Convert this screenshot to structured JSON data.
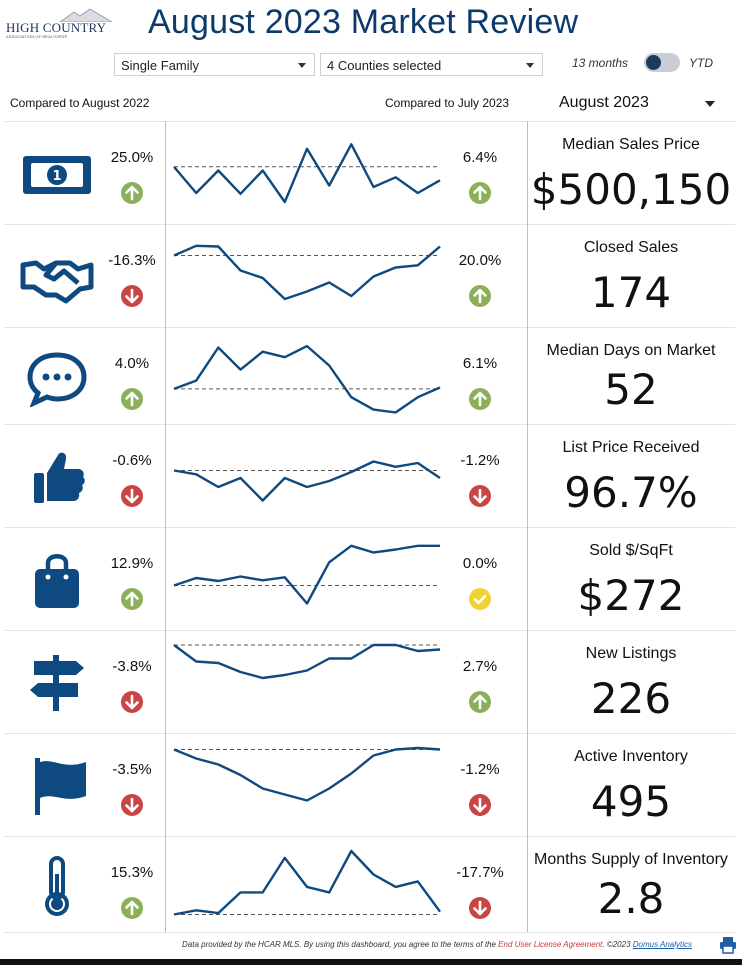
{
  "logo": {
    "name": "HIGH COUNTRY",
    "tagline": "ASSOCIATION OF REALTORS®"
  },
  "title": "August 2023 Market Review",
  "filters": {
    "property_type": "Single Family",
    "counties": "4 Counties selected",
    "toggle_left": "13 months",
    "toggle_right": "YTD"
  },
  "compare": {
    "year_label": "Compared to August 2022",
    "month_label": "Compared to July 2023",
    "selected_month": "August 2023"
  },
  "colors": {
    "accent": "#0e3a6b",
    "up": "#8cb05a",
    "down": "#c94545",
    "flat": "#f0d234"
  },
  "metrics": [
    {
      "title": "Median Sales Price",
      "value": "$500,150",
      "yoy": "25.0%",
      "yoy_dir": "up",
      "mom": "6.4%",
      "mom_dir": "up",
      "icon": "money-icon",
      "series": [
        0.41,
        0.76,
        0.46,
        0.77,
        0.46,
        0.88,
        0.17,
        0.66,
        0.11,
        0.68,
        0.55,
        0.76,
        0.59
      ]
    },
    {
      "title": "Closed Sales",
      "value": "174",
      "yoy": "-16.3%",
      "yoy_dir": "down",
      "mom": "20.0%",
      "mom_dir": "up",
      "icon": "handshake-icon",
      "series": [
        0.22,
        0.09,
        0.1,
        0.42,
        0.52,
        0.8,
        0.7,
        0.58,
        0.76,
        0.5,
        0.38,
        0.35,
        0.1
      ]
    },
    {
      "title": "Median Days on Market",
      "value": "52",
      "yoy": "4.0%",
      "yoy_dir": "up",
      "mom": "6.1%",
      "mom_dir": "up",
      "icon": "chat-icon",
      "series": [
        0.68,
        0.56,
        0.08,
        0.4,
        0.14,
        0.22,
        0.06,
        0.34,
        0.8,
        0.98,
        1.02,
        0.8,
        0.66
      ]
    },
    {
      "title": "List Price Received",
      "value": "96.7%",
      "yoy": "-0.6%",
      "yoy_dir": "down",
      "mom": "-1.2%",
      "mom_dir": "down",
      "icon": "thumbs-up-icon",
      "series": [
        0.42,
        0.47,
        0.64,
        0.52,
        0.82,
        0.52,
        0.64,
        0.56,
        0.44,
        0.3,
        0.37,
        0.32,
        0.52
      ]
    },
    {
      "title": "Sold $/SqFt",
      "value": "$272",
      "yoy": "12.9%",
      "yoy_dir": "up",
      "mom": "0.0%",
      "mom_dir": "flat",
      "icon": "shopping-bag-icon",
      "series": [
        0.58,
        0.48,
        0.52,
        0.46,
        0.51,
        0.47,
        0.82,
        0.27,
        0.05,
        0.14,
        0.1,
        0.05,
        0.05
      ]
    },
    {
      "title": "New Listings",
      "value": "226",
      "yoy": "-3.8%",
      "yoy_dir": "down",
      "mom": "2.7%",
      "mom_dir": "up",
      "icon": "signpost-icon",
      "series": [
        0.0,
        0.22,
        0.24,
        0.36,
        0.44,
        0.4,
        0.34,
        0.18,
        0.18,
        0.0,
        0.0,
        0.08,
        0.06
      ]
    },
    {
      "title": "Active Inventory",
      "value": "495",
      "yoy": "-3.5%",
      "yoy_dir": "down",
      "mom": "-1.2%",
      "mom_dir": "down",
      "icon": "flag-icon",
      "series": [
        0.02,
        0.14,
        0.22,
        0.36,
        0.54,
        0.62,
        0.7,
        0.54,
        0.34,
        0.1,
        0.02,
        0.0,
        0.02
      ]
    },
    {
      "title": "Months Supply of Inventory",
      "value": "2.8",
      "yoy": "15.3%",
      "yoy_dir": "up",
      "mom": "-17.7%",
      "mom_dir": "down",
      "icon": "thermometer-icon",
      "series": [
        0.92,
        0.86,
        0.9,
        0.6,
        0.6,
        0.1,
        0.52,
        0.6,
        0.0,
        0.34,
        0.52,
        0.44,
        0.88
      ]
    }
  ],
  "footer": {
    "text1": "Data provided by the HCAR MLS.  By using this dashboard, you agree to the terms of the ",
    "link1": "End User License Agreement",
    "text2": ".  ©2023 ",
    "link2": "Domus Analytics"
  }
}
